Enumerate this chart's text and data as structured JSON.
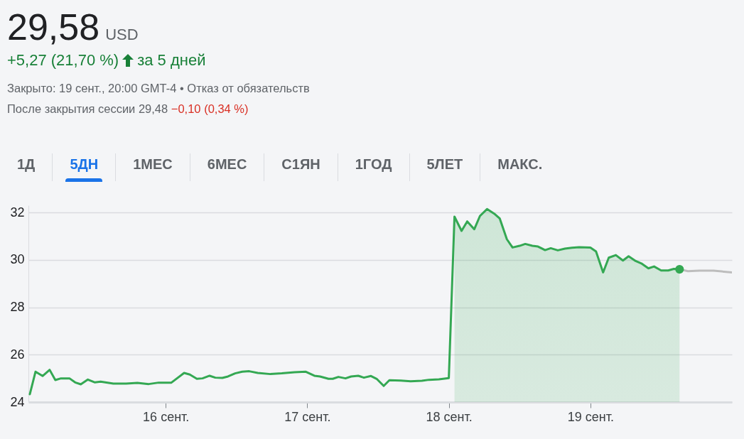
{
  "chart_data": {
    "type": "line",
    "title": "29,58",
    "annotations": [
      "USD",
      "+5,27 (21,70 %)",
      "за 5 дней",
      "Закрыто: 19 сент., 20:00 GMT-4 • Отказ от обязательств",
      "После закрытия сессии 29,48",
      "−0,10 (0,34 %)",
      "1Д",
      "5ДН",
      "1МЕС",
      "6МЕС",
      "С1ЯН",
      "1ГОД",
      "5ЛЕТ",
      "МАКС."
    ],
    "xlim": [
      15.03,
      20.0
    ],
    "xticks": [
      {
        "value": 16,
        "label": "16 сент."
      },
      {
        "value": 17,
        "label": "17 сент."
      },
      {
        "value": 18,
        "label": "18 сент."
      },
      {
        "value": 19,
        "label": "19 сент."
      }
    ],
    "ylim": [
      24,
      32.3
    ],
    "yticks": [
      24,
      26,
      28,
      30,
      32
    ],
    "grid": "y",
    "line_style": "solid",
    "series": [
      {
        "type": "line",
        "color": "#34a853",
        "x": [
          15.04,
          15.08,
          15.13,
          15.18,
          15.22,
          15.26,
          15.32,
          15.36,
          15.4,
          15.45,
          15.5,
          15.54,
          15.63,
          15.72,
          15.8,
          15.88,
          15.95,
          16.04,
          16.13,
          16.17,
          16.22,
          16.26,
          16.31,
          16.35,
          16.4,
          16.44,
          16.49,
          16.54,
          16.59,
          16.65,
          16.74,
          16.82,
          16.91,
          16.99,
          17.05,
          17.09,
          17.15,
          17.18,
          17.22,
          17.27,
          17.31,
          17.36,
          17.4,
          17.45,
          17.49,
          17.54,
          17.58,
          17.66,
          17.73,
          17.81,
          17.86,
          17.93,
          18.0,
          18.04
        ],
        "values": [
          24.33,
          25.28,
          25.1,
          25.36,
          24.93,
          25.0,
          25.0,
          24.83,
          24.75,
          24.95,
          24.83,
          24.86,
          24.78,
          24.78,
          24.81,
          24.76,
          24.82,
          24.82,
          25.23,
          25.16,
          24.98,
          25.0,
          25.11,
          25.03,
          25.02,
          25.08,
          25.21,
          25.28,
          25.3,
          25.23,
          25.18,
          25.21,
          25.26,
          25.28,
          25.11,
          25.08,
          24.98,
          24.98,
          25.06,
          25.0,
          25.08,
          25.11,
          25.03,
          25.1,
          24.98,
          24.68,
          24.92,
          24.91,
          24.88,
          24.9,
          24.94,
          24.96,
          25.01,
          31.82
        ]
      },
      {
        "type": "area",
        "color": "#34a853",
        "x": [
          18.04,
          18.09,
          18.13,
          18.18,
          18.22,
          18.27,
          18.32,
          18.36,
          18.41,
          18.45,
          18.5,
          18.54,
          18.59,
          18.63,
          18.68,
          18.72,
          18.77,
          18.82,
          18.87,
          18.92,
          19.0,
          19.04,
          19.09,
          19.13,
          19.18,
          19.23,
          19.27,
          19.32,
          19.36,
          19.41,
          19.45,
          19.5,
          19.55,
          19.59,
          19.63
        ],
        "values": [
          31.82,
          31.22,
          31.62,
          31.29,
          31.85,
          32.14,
          31.95,
          31.74,
          30.87,
          30.52,
          30.59,
          30.67,
          30.59,
          30.56,
          30.41,
          30.49,
          30.4,
          30.47,
          30.51,
          30.53,
          30.52,
          30.35,
          29.47,
          30.09,
          30.2,
          29.97,
          30.15,
          29.95,
          29.85,
          29.64,
          29.72,
          29.55,
          29.55,
          29.62,
          29.6
        ]
      },
      {
        "type": "line",
        "color": "#bdbdbd",
        "x": [
          19.63,
          19.69,
          19.77,
          19.87,
          20.0
        ],
        "values": [
          29.6,
          29.52,
          29.54,
          29.54,
          29.47
        ]
      },
      {
        "type": "scatter",
        "color": "#34a853",
        "marker": "circle",
        "x": [
          19.63
        ],
        "values": [
          29.6
        ]
      }
    ]
  }
}
